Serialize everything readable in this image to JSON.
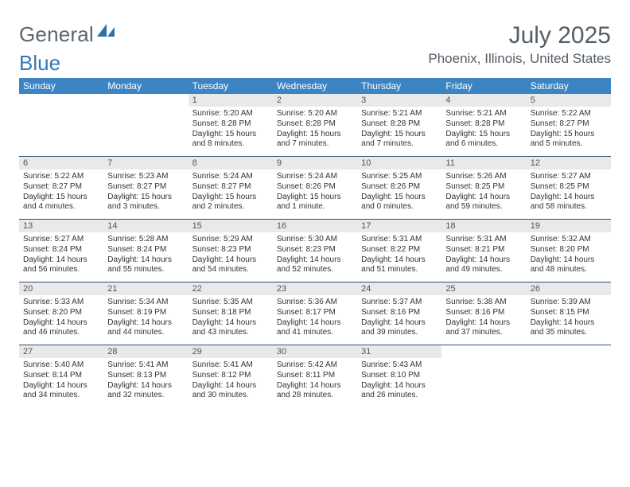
{
  "logo": {
    "general": "General",
    "blue": "Blue"
  },
  "title": "July 2025",
  "location": "Phoenix, Illinois, United States",
  "colors": {
    "header_bg": "#3c85c5",
    "header_text": "#ffffff",
    "daynum_bg": "#e9e9ea",
    "week_border": "#2c5274",
    "body_text": "#333333",
    "title_text": "#555d65",
    "logo_gray": "#5c666f",
    "logo_blue": "#3578b8"
  },
  "dayHeaders": [
    "Sunday",
    "Monday",
    "Tuesday",
    "Wednesday",
    "Thursday",
    "Friday",
    "Saturday"
  ],
  "weeks": [
    [
      null,
      null,
      {
        "n": "1",
        "sr": "Sunrise: 5:20 AM",
        "ss": "Sunset: 8:28 PM",
        "d1": "Daylight: 15 hours",
        "d2": "and 8 minutes."
      },
      {
        "n": "2",
        "sr": "Sunrise: 5:20 AM",
        "ss": "Sunset: 8:28 PM",
        "d1": "Daylight: 15 hours",
        "d2": "and 7 minutes."
      },
      {
        "n": "3",
        "sr": "Sunrise: 5:21 AM",
        "ss": "Sunset: 8:28 PM",
        "d1": "Daylight: 15 hours",
        "d2": "and 7 minutes."
      },
      {
        "n": "4",
        "sr": "Sunrise: 5:21 AM",
        "ss": "Sunset: 8:28 PM",
        "d1": "Daylight: 15 hours",
        "d2": "and 6 minutes."
      },
      {
        "n": "5",
        "sr": "Sunrise: 5:22 AM",
        "ss": "Sunset: 8:27 PM",
        "d1": "Daylight: 15 hours",
        "d2": "and 5 minutes."
      }
    ],
    [
      {
        "n": "6",
        "sr": "Sunrise: 5:22 AM",
        "ss": "Sunset: 8:27 PM",
        "d1": "Daylight: 15 hours",
        "d2": "and 4 minutes."
      },
      {
        "n": "7",
        "sr": "Sunrise: 5:23 AM",
        "ss": "Sunset: 8:27 PM",
        "d1": "Daylight: 15 hours",
        "d2": "and 3 minutes."
      },
      {
        "n": "8",
        "sr": "Sunrise: 5:24 AM",
        "ss": "Sunset: 8:27 PM",
        "d1": "Daylight: 15 hours",
        "d2": "and 2 minutes."
      },
      {
        "n": "9",
        "sr": "Sunrise: 5:24 AM",
        "ss": "Sunset: 8:26 PM",
        "d1": "Daylight: 15 hours",
        "d2": "and 1 minute."
      },
      {
        "n": "10",
        "sr": "Sunrise: 5:25 AM",
        "ss": "Sunset: 8:26 PM",
        "d1": "Daylight: 15 hours",
        "d2": "and 0 minutes."
      },
      {
        "n": "11",
        "sr": "Sunrise: 5:26 AM",
        "ss": "Sunset: 8:25 PM",
        "d1": "Daylight: 14 hours",
        "d2": "and 59 minutes."
      },
      {
        "n": "12",
        "sr": "Sunrise: 5:27 AM",
        "ss": "Sunset: 8:25 PM",
        "d1": "Daylight: 14 hours",
        "d2": "and 58 minutes."
      }
    ],
    [
      {
        "n": "13",
        "sr": "Sunrise: 5:27 AM",
        "ss": "Sunset: 8:24 PM",
        "d1": "Daylight: 14 hours",
        "d2": "and 56 minutes."
      },
      {
        "n": "14",
        "sr": "Sunrise: 5:28 AM",
        "ss": "Sunset: 8:24 PM",
        "d1": "Daylight: 14 hours",
        "d2": "and 55 minutes."
      },
      {
        "n": "15",
        "sr": "Sunrise: 5:29 AM",
        "ss": "Sunset: 8:23 PM",
        "d1": "Daylight: 14 hours",
        "d2": "and 54 minutes."
      },
      {
        "n": "16",
        "sr": "Sunrise: 5:30 AM",
        "ss": "Sunset: 8:23 PM",
        "d1": "Daylight: 14 hours",
        "d2": "and 52 minutes."
      },
      {
        "n": "17",
        "sr": "Sunrise: 5:31 AM",
        "ss": "Sunset: 8:22 PM",
        "d1": "Daylight: 14 hours",
        "d2": "and 51 minutes."
      },
      {
        "n": "18",
        "sr": "Sunrise: 5:31 AM",
        "ss": "Sunset: 8:21 PM",
        "d1": "Daylight: 14 hours",
        "d2": "and 49 minutes."
      },
      {
        "n": "19",
        "sr": "Sunrise: 5:32 AM",
        "ss": "Sunset: 8:20 PM",
        "d1": "Daylight: 14 hours",
        "d2": "and 48 minutes."
      }
    ],
    [
      {
        "n": "20",
        "sr": "Sunrise: 5:33 AM",
        "ss": "Sunset: 8:20 PM",
        "d1": "Daylight: 14 hours",
        "d2": "and 46 minutes."
      },
      {
        "n": "21",
        "sr": "Sunrise: 5:34 AM",
        "ss": "Sunset: 8:19 PM",
        "d1": "Daylight: 14 hours",
        "d2": "and 44 minutes."
      },
      {
        "n": "22",
        "sr": "Sunrise: 5:35 AM",
        "ss": "Sunset: 8:18 PM",
        "d1": "Daylight: 14 hours",
        "d2": "and 43 minutes."
      },
      {
        "n": "23",
        "sr": "Sunrise: 5:36 AM",
        "ss": "Sunset: 8:17 PM",
        "d1": "Daylight: 14 hours",
        "d2": "and 41 minutes."
      },
      {
        "n": "24",
        "sr": "Sunrise: 5:37 AM",
        "ss": "Sunset: 8:16 PM",
        "d1": "Daylight: 14 hours",
        "d2": "and 39 minutes."
      },
      {
        "n": "25",
        "sr": "Sunrise: 5:38 AM",
        "ss": "Sunset: 8:16 PM",
        "d1": "Daylight: 14 hours",
        "d2": "and 37 minutes."
      },
      {
        "n": "26",
        "sr": "Sunrise: 5:39 AM",
        "ss": "Sunset: 8:15 PM",
        "d1": "Daylight: 14 hours",
        "d2": "and 35 minutes."
      }
    ],
    [
      {
        "n": "27",
        "sr": "Sunrise: 5:40 AM",
        "ss": "Sunset: 8:14 PM",
        "d1": "Daylight: 14 hours",
        "d2": "and 34 minutes."
      },
      {
        "n": "28",
        "sr": "Sunrise: 5:41 AM",
        "ss": "Sunset: 8:13 PM",
        "d1": "Daylight: 14 hours",
        "d2": "and 32 minutes."
      },
      {
        "n": "29",
        "sr": "Sunrise: 5:41 AM",
        "ss": "Sunset: 8:12 PM",
        "d1": "Daylight: 14 hours",
        "d2": "and 30 minutes."
      },
      {
        "n": "30",
        "sr": "Sunrise: 5:42 AM",
        "ss": "Sunset: 8:11 PM",
        "d1": "Daylight: 14 hours",
        "d2": "and 28 minutes."
      },
      {
        "n": "31",
        "sr": "Sunrise: 5:43 AM",
        "ss": "Sunset: 8:10 PM",
        "d1": "Daylight: 14 hours",
        "d2": "and 26 minutes."
      },
      null,
      null
    ]
  ]
}
